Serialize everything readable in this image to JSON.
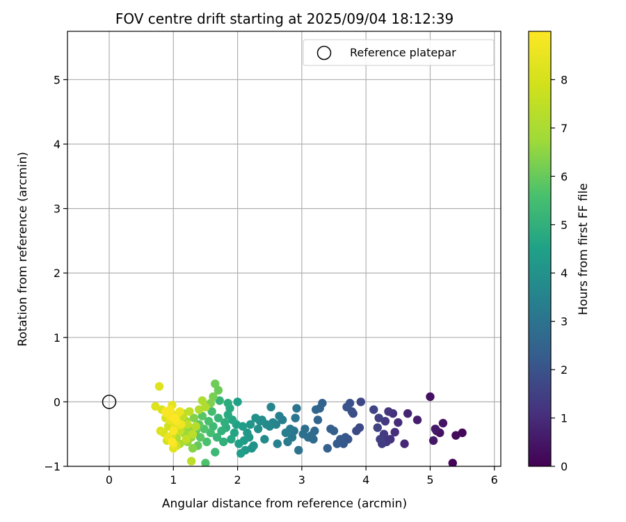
{
  "chart_data": {
    "type": "scatter",
    "title": "FOV centre drift starting at 2025/09/04 18:12:39",
    "xlabel": "Angular distance from reference (arcmin)",
    "ylabel": "Rotation from reference (arcmin)",
    "xlim": [
      -0.65,
      6.1
    ],
    "ylim": [
      -1,
      5.75
    ],
    "x_ticks": [
      "0",
      "1",
      "2",
      "3",
      "4",
      "5",
      "6"
    ],
    "y_ticks": [
      "−1",
      "0",
      "1",
      "2",
      "3",
      "4",
      "5"
    ],
    "grid": true,
    "legend": {
      "placement": "top-right",
      "entries": [
        "Reference platepar"
      ]
    },
    "reference_point": {
      "name": "Reference platepar",
      "x": 0,
      "y": 0
    },
    "colorbar": {
      "label": "Hours from first FF file",
      "colormap": "viridis",
      "range": [
        0,
        9
      ],
      "ticks": [
        "0",
        "1",
        "2",
        "3",
        "4",
        "5",
        "6",
        "7",
        "8"
      ]
    },
    "series": [
      {
        "color_by": "hours",
        "points": [
          [
            5.35,
            -0.95,
            0.1
          ],
          [
            5.5,
            -0.48,
            0.15
          ],
          [
            5.4,
            -0.52,
            0.2
          ],
          [
            5.1,
            -0.45,
            0.3
          ],
          [
            5.15,
            -0.48,
            0.4
          ],
          [
            5.2,
            -0.33,
            0.45
          ],
          [
            5.0,
            0.08,
            0.35
          ],
          [
            5.05,
            -0.6,
            0.5
          ],
          [
            5.08,
            -0.42,
            0.55
          ],
          [
            4.8,
            -0.28,
            0.7
          ],
          [
            4.65,
            -0.18,
            0.8
          ],
          [
            4.6,
            -0.65,
            0.9
          ],
          [
            4.5,
            -0.32,
            1.0
          ],
          [
            4.45,
            -0.47,
            1.05
          ],
          [
            4.42,
            -0.18,
            1.1
          ],
          [
            4.38,
            -0.58,
            1.15
          ],
          [
            4.35,
            -0.15,
            1.2
          ],
          [
            4.32,
            -0.62,
            1.25
          ],
          [
            4.3,
            -0.3,
            1.3
          ],
          [
            4.28,
            -0.5,
            1.35
          ],
          [
            4.25,
            -0.65,
            1.4
          ],
          [
            4.22,
            -0.58,
            1.45
          ],
          [
            4.2,
            -0.25,
            1.5
          ],
          [
            4.18,
            -0.4,
            1.55
          ],
          [
            4.12,
            -0.12,
            1.6
          ],
          [
            3.92,
            0.0,
            1.7
          ],
          [
            3.9,
            -0.4,
            1.75
          ],
          [
            3.85,
            -0.45,
            1.8
          ],
          [
            3.8,
            -0.18,
            1.85
          ],
          [
            3.78,
            -0.15,
            1.9
          ],
          [
            3.75,
            -0.02,
            1.95
          ],
          [
            3.7,
            -0.08,
            2.0
          ],
          [
            3.72,
            -0.58,
            2.05
          ],
          [
            3.68,
            -0.55,
            2.1
          ],
          [
            3.65,
            -0.65,
            2.15
          ],
          [
            3.6,
            -0.58,
            2.2
          ],
          [
            3.55,
            -0.65,
            2.25
          ],
          [
            3.5,
            -0.45,
            2.3
          ],
          [
            3.45,
            -0.42,
            2.35
          ],
          [
            3.4,
            -0.72,
            2.4
          ],
          [
            3.32,
            -0.02,
            2.45
          ],
          [
            3.28,
            -0.1,
            2.5
          ],
          [
            3.25,
            -0.28,
            2.55
          ],
          [
            3.22,
            -0.12,
            2.6
          ],
          [
            3.2,
            -0.45,
            2.65
          ],
          [
            3.18,
            -0.58,
            2.7
          ],
          [
            3.15,
            -0.52,
            2.75
          ],
          [
            3.1,
            -0.55,
            2.8
          ],
          [
            3.05,
            -0.42,
            2.85
          ],
          [
            3.02,
            -0.5,
            2.9
          ],
          [
            2.95,
            -0.75,
            2.95
          ],
          [
            2.92,
            -0.1,
            3.0
          ],
          [
            2.9,
            -0.25,
            3.05
          ],
          [
            2.88,
            -0.45,
            3.1
          ],
          [
            2.85,
            -0.55,
            3.15
          ],
          [
            2.82,
            -0.42,
            3.2
          ],
          [
            2.78,
            -0.62,
            3.25
          ],
          [
            2.75,
            -0.48,
            3.3
          ],
          [
            2.7,
            -0.28,
            3.35
          ],
          [
            2.65,
            -0.22,
            3.4
          ],
          [
            2.62,
            -0.65,
            3.45
          ],
          [
            2.6,
            -0.35,
            3.5
          ],
          [
            2.55,
            -0.32,
            3.55
          ],
          [
            2.52,
            -0.08,
            3.6
          ],
          [
            2.5,
            -0.38,
            3.65
          ],
          [
            2.45,
            -0.35,
            3.7
          ],
          [
            2.42,
            -0.58,
            3.75
          ],
          [
            2.38,
            -0.28,
            3.8
          ],
          [
            2.35,
            -0.3,
            3.85
          ],
          [
            2.32,
            -0.42,
            3.9
          ],
          [
            2.28,
            -0.25,
            3.95
          ],
          [
            2.25,
            -0.68,
            4.0
          ],
          [
            2.22,
            -0.72,
            4.05
          ],
          [
            2.2,
            -0.35,
            4.1
          ],
          [
            2.18,
            -0.55,
            4.15
          ],
          [
            2.15,
            -0.48,
            4.2
          ],
          [
            2.12,
            -0.75,
            4.25
          ],
          [
            2.1,
            -0.6,
            4.3
          ],
          [
            2.08,
            -0.38,
            4.35
          ],
          [
            2.05,
            -0.8,
            4.4
          ],
          [
            2.02,
            -0.65,
            4.45
          ],
          [
            2.0,
            0.0,
            4.5
          ],
          [
            1.98,
            -0.35,
            4.55
          ],
          [
            1.95,
            -0.48,
            4.6
          ],
          [
            1.92,
            -0.28,
            4.65
          ],
          [
            1.9,
            -0.58,
            4.7
          ],
          [
            1.88,
            -0.1,
            4.75
          ],
          [
            1.85,
            -0.2,
            4.8
          ],
          [
            1.85,
            -0.02,
            4.85
          ],
          [
            1.82,
            -0.4,
            4.9
          ],
          [
            1.8,
            -0.32,
            4.95
          ],
          [
            1.78,
            -0.62,
            5.0
          ],
          [
            1.75,
            -0.45,
            5.05
          ],
          [
            1.72,
            0.02,
            5.1
          ],
          [
            1.7,
            -0.25,
            5.15
          ],
          [
            1.68,
            -0.55,
            5.2
          ],
          [
            1.65,
            -0.78,
            5.3
          ],
          [
            1.62,
            -0.38,
            5.35
          ],
          [
            1.6,
            -0.15,
            5.45
          ],
          [
            1.58,
            -0.48,
            5.5
          ],
          [
            1.55,
            -0.3,
            5.55
          ],
          [
            1.52,
            -0.62,
            5.6
          ],
          [
            1.5,
            -0.95,
            5.65
          ],
          [
            1.48,
            -0.42,
            5.7
          ],
          [
            1.45,
            -0.22,
            5.8
          ],
          [
            1.42,
            -0.55,
            5.85
          ],
          [
            1.4,
            -0.35,
            5.9
          ],
          [
            1.38,
            -0.68,
            5.95
          ],
          [
            1.35,
            -0.45,
            6.0
          ],
          [
            1.65,
            0.28,
            6.1
          ],
          [
            1.7,
            0.18,
            6.05
          ],
          [
            1.62,
            0.08,
            6.2
          ],
          [
            1.58,
            -0.02,
            6.3
          ],
          [
            1.32,
            -0.25,
            6.35
          ],
          [
            1.3,
            -0.72,
            6.4
          ],
          [
            1.28,
            -0.55,
            6.5
          ],
          [
            1.25,
            -0.4,
            6.55
          ],
          [
            1.22,
            -0.62,
            6.6
          ],
          [
            1.2,
            -0.3,
            6.7
          ],
          [
            1.18,
            -0.5,
            6.75
          ],
          [
            1.15,
            -0.18,
            6.8
          ],
          [
            1.12,
            -0.42,
            6.9
          ],
          [
            1.1,
            -0.65,
            6.95
          ],
          [
            1.08,
            -0.28,
            7.0
          ],
          [
            1.05,
            -0.55,
            7.05
          ],
          [
            1.45,
            0.02,
            7.1
          ],
          [
            1.5,
            -0.08,
            7.15
          ],
          [
            1.4,
            -0.12,
            7.2
          ],
          [
            1.35,
            -0.38,
            7.3
          ],
          [
            1.3,
            -0.5,
            7.35
          ],
          [
            1.28,
            -0.92,
            7.4
          ],
          [
            1.25,
            -0.15,
            7.45
          ],
          [
            1.22,
            -0.35,
            7.5
          ],
          [
            1.2,
            -0.58,
            7.55
          ],
          [
            1.15,
            -0.22,
            7.6
          ],
          [
            1.1,
            -0.45,
            7.65
          ],
          [
            1.05,
            -0.68,
            7.7
          ],
          [
            1.0,
            -0.3,
            7.75
          ],
          [
            0.98,
            -0.52,
            7.8
          ],
          [
            0.95,
            -0.15,
            7.85
          ],
          [
            0.92,
            -0.38,
            7.9
          ],
          [
            0.9,
            -0.6,
            7.95
          ],
          [
            0.88,
            -0.25,
            8.0
          ],
          [
            0.85,
            -0.48,
            8.05
          ],
          [
            0.82,
            -0.12,
            8.1
          ],
          [
            0.8,
            -0.45,
            8.15
          ],
          [
            0.78,
            0.24,
            8.2
          ],
          [
            0.72,
            -0.07,
            8.25
          ],
          [
            1.0,
            -0.72,
            8.3
          ],
          [
            0.98,
            -0.05,
            8.35
          ],
          [
            1.02,
            -0.4,
            8.4
          ],
          [
            1.05,
            -0.2,
            8.45
          ],
          [
            0.95,
            -0.28,
            8.5
          ],
          [
            0.92,
            -0.55,
            8.55
          ],
          [
            1.1,
            -0.15,
            8.6
          ],
          [
            1.12,
            -0.35,
            8.65
          ],
          [
            1.0,
            -0.65,
            8.7
          ],
          [
            0.9,
            -0.18,
            8.75
          ],
          [
            0.95,
            -0.22,
            8.8
          ],
          [
            1.05,
            -0.3,
            8.85
          ],
          [
            1.0,
            -0.45,
            8.9
          ],
          [
            0.98,
            -0.62,
            8.95
          ],
          [
            1.02,
            -0.25,
            9.0
          ],
          [
            0.88,
            -0.15,
            8.9
          ],
          [
            0.95,
            -0.12,
            8.85
          ]
        ]
      }
    ]
  }
}
